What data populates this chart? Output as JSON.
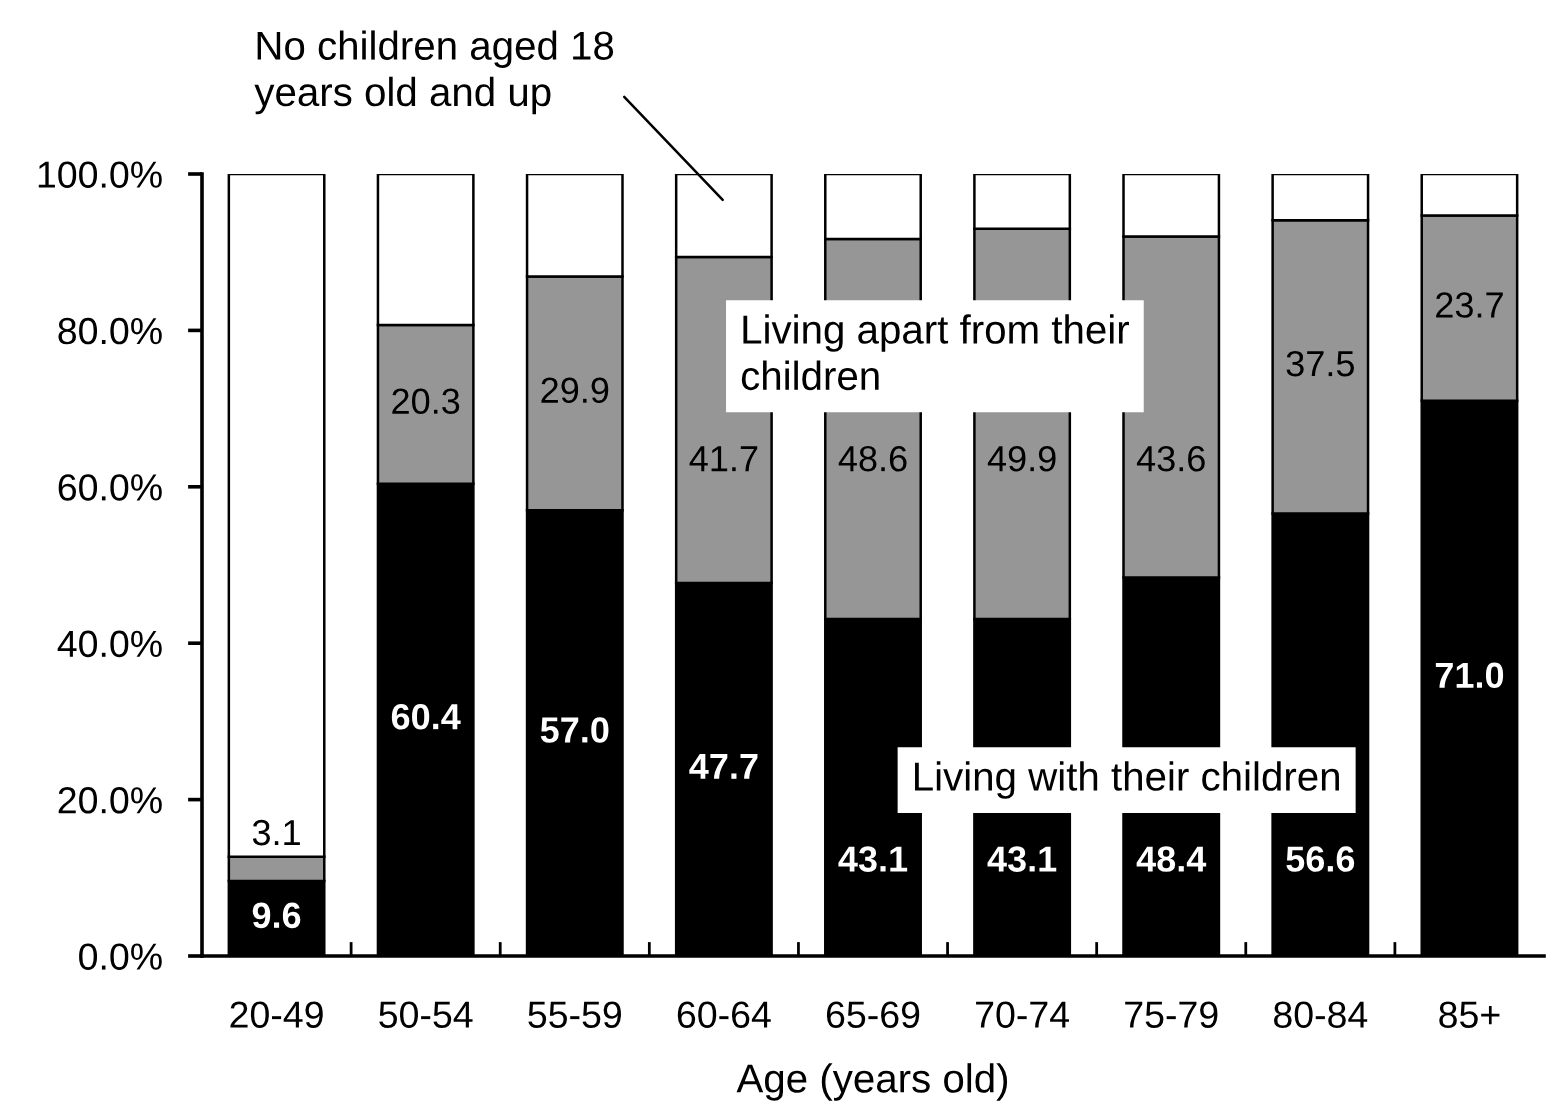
{
  "chart_data": {
    "type": "bar",
    "stacked": true,
    "xlabel": "Age (years old)",
    "categories": [
      "20-49",
      "50-54",
      "55-59",
      "60-64",
      "65-69",
      "70-74",
      "75-79",
      "80-84",
      "85+"
    ],
    "series": [
      {
        "name": "Living with their children",
        "color": "#000000",
        "values": [
          9.6,
          60.4,
          57.0,
          47.7,
          43.1,
          43.1,
          48.4,
          56.6,
          71.0
        ],
        "value_labels": [
          "9.6",
          "60.4",
          "57.0",
          "47.7",
          "43.1",
          "43.1",
          "48.4",
          "56.6",
          "71.0"
        ]
      },
      {
        "name": "Living apart from their\nchildren",
        "color": "#969696",
        "values": [
          3.1,
          20.3,
          29.9,
          41.7,
          48.6,
          49.9,
          43.6,
          37.5,
          23.7
        ],
        "value_labels": [
          "3.1",
          "20.3",
          "29.9",
          "41.7",
          "48.6",
          "49.9",
          "43.6",
          "37.5",
          "23.7"
        ]
      },
      {
        "name": "No children aged 18\nyears old and up",
        "color": "#ffffff",
        "values": [
          87.3,
          19.3,
          13.1,
          10.6,
          8.3,
          7.0,
          8.0,
          5.9,
          5.3
        ]
      }
    ],
    "ylim": [
      0,
      100
    ],
    "yticks": [
      {
        "value": 0,
        "label": "0.0%"
      },
      {
        "value": 20,
        "label": "20.0%"
      },
      {
        "value": 40,
        "label": "40.0%"
      },
      {
        "value": 60,
        "label": "60.0%"
      },
      {
        "value": 80,
        "label": "80.0%"
      },
      {
        "value": 100,
        "label": "100.0%"
      }
    ],
    "grid": false,
    "legend": false
  }
}
